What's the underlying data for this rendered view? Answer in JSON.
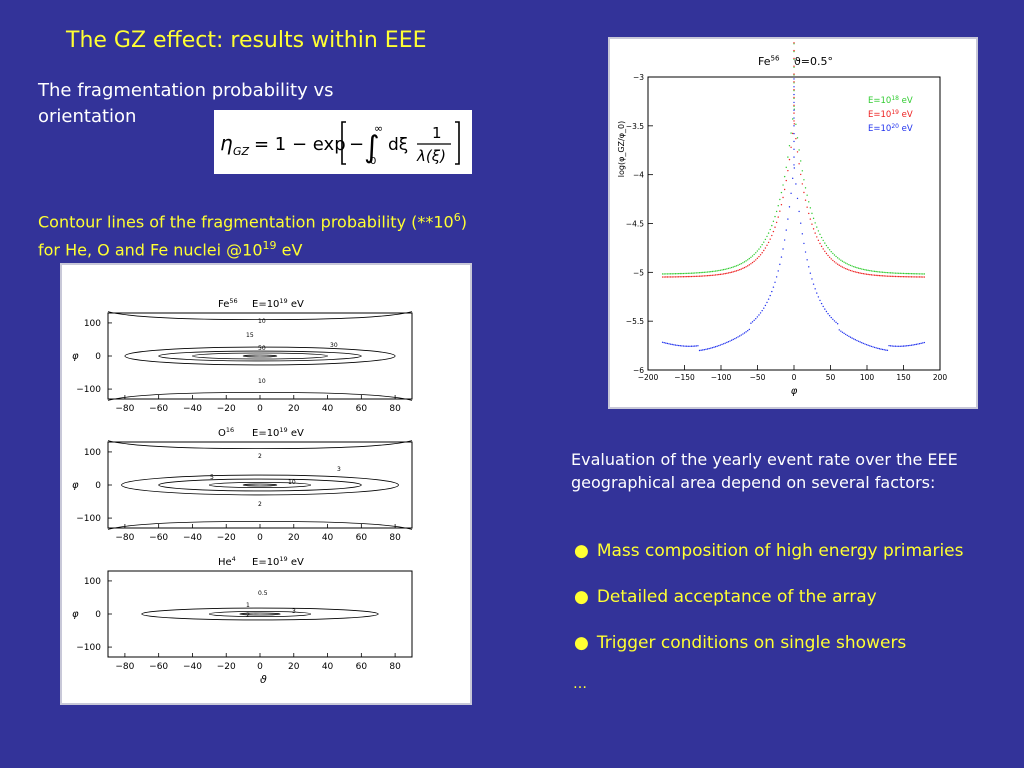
{
  "slide": {
    "title": "The GZ effect: results within EEE",
    "subtitle": "The fragmentation probability vs orientation",
    "formula": {
      "lhs": "η",
      "lhs_sub": "GZ",
      "rhs": "= 1 − exp",
      "integral_upper": "∞",
      "integral_lower": "0",
      "integrand_prefix": "dξ",
      "frac_num": "1",
      "frac_den": "λ(ξ)"
    },
    "contour_caption": {
      "line1_pre": "Contour lines of the fragmentation probability (**10",
      "line1_sup": "6",
      "line1_post": ")",
      "line2_pre": "for He, O and Fe nuclei @10",
      "line2_sup": "19",
      "line2_post": " eV"
    },
    "evaluation_text": "Evaluation of the yearly event rate over the EEE geographical area depend on several factors:",
    "bullets": [
      {
        "symbol": "●",
        "text": "Mass composition of high energy primaries"
      },
      {
        "symbol": "●",
        "text": "Detailed acceptance of the array"
      },
      {
        "symbol": "●",
        "text": "Trigger conditions on single showers"
      }
    ],
    "ellipsis": "…"
  },
  "colors": {
    "background": "#333399",
    "title": "#ffff33",
    "green_series": "#33cc33",
    "red_series": "#ee2222",
    "blue_series": "#2233ee"
  },
  "chart_data": [
    {
      "type": "contour",
      "title": "Fe",
      "title_sup": "56",
      "subtitle": "E=10",
      "subtitle_sup": "19",
      "subtitle_unit": " eV",
      "ylabel": "φ",
      "xlim": [
        -90,
        90
      ],
      "ylim": [
        -130,
        130
      ],
      "xticks": [
        -80,
        -60,
        -40,
        -20,
        0,
        20,
        40,
        60,
        80
      ],
      "yticks": [
        100,
        0,
        -100
      ],
      "contour_labels": [
        "10",
        "15",
        "50",
        "30",
        "10"
      ],
      "contours": [
        {
          "level": "10",
          "rx": 80,
          "ry": 27
        },
        {
          "level": "15",
          "rx": 60,
          "ry": 15
        },
        {
          "level": "30",
          "rx": 40,
          "ry": 9
        },
        {
          "level": "50",
          "rx": 10,
          "ry": 3
        }
      ],
      "edge_band": {
        "level": "10",
        "y": 110
      }
    },
    {
      "type": "contour",
      "title": "O",
      "title_sup": "16",
      "subtitle": "E=10",
      "subtitle_sup": "19",
      "subtitle_unit": " eV",
      "ylabel": "φ",
      "xlim": [
        -90,
        90
      ],
      "ylim": [
        -130,
        130
      ],
      "xticks": [
        -80,
        -60,
        -40,
        -20,
        0,
        20,
        40,
        60,
        80
      ],
      "yticks": [
        100,
        0,
        -100
      ],
      "contour_labels": [
        "2",
        "3",
        "5",
        "10",
        "2"
      ],
      "contours": [
        {
          "level": "2",
          "rx": 82,
          "ry": 30
        },
        {
          "level": "3",
          "rx": 60,
          "ry": 18
        },
        {
          "level": "5",
          "rx": 30,
          "ry": 8
        },
        {
          "level": "10",
          "rx": 10,
          "ry": 3
        }
      ],
      "edge_band": {
        "level": "2",
        "y": 110
      }
    },
    {
      "type": "contour",
      "title": "He",
      "title_sup": "4",
      "subtitle": "E=10",
      "subtitle_sup": "19",
      "subtitle_unit": " eV",
      "ylabel": "φ",
      "xlabel": "ϑ",
      "xlim": [
        -90,
        90
      ],
      "ylim": [
        -130,
        130
      ],
      "xticks": [
        -80,
        -60,
        -40,
        -20,
        0,
        20,
        40,
        60,
        80
      ],
      "yticks": [
        100,
        0,
        -100
      ],
      "contour_labels": [
        "0.5",
        "1",
        "2",
        "3"
      ],
      "contours": [
        {
          "level": "0.5",
          "rx": 70,
          "ry": 18
        },
        {
          "level": "1",
          "rx": 30,
          "ry": 8
        },
        {
          "level": "2",
          "rx": 12,
          "ry": 3
        }
      ]
    },
    {
      "type": "scatter",
      "title": "Fe",
      "title_sup": "56",
      "title_angle": "ϑ=0.5°",
      "ylabel": "log(φ_GZ/φ_0)",
      "xlabel": "φ",
      "xlim": [
        -200,
        200
      ],
      "ylim": [
        -6,
        -3
      ],
      "xticks": [
        -200,
        -150,
        -100,
        -50,
        0,
        50,
        100,
        150,
        200
      ],
      "yticks": [
        -3,
        -3.5,
        -4,
        -4.5,
        -5,
        -5.5,
        -6
      ],
      "series": [
        {
          "name": "E=10",
          "name_sup": "18",
          "name_unit": " eV",
          "color": "#33cc33",
          "floor": -5.02,
          "peak": -3.3,
          "k": 55
        },
        {
          "name": "E=10",
          "name_sup": "19",
          "name_unit": " eV",
          "color": "#ee2222",
          "floor": -5.05,
          "peak": -3.45,
          "k": 50
        },
        {
          "name": "E=10",
          "name_sup": "20",
          "name_unit": " eV",
          "color": "#2233ee",
          "floor": -5.7,
          "peak": -3.9,
          "k": 40
        }
      ]
    }
  ]
}
